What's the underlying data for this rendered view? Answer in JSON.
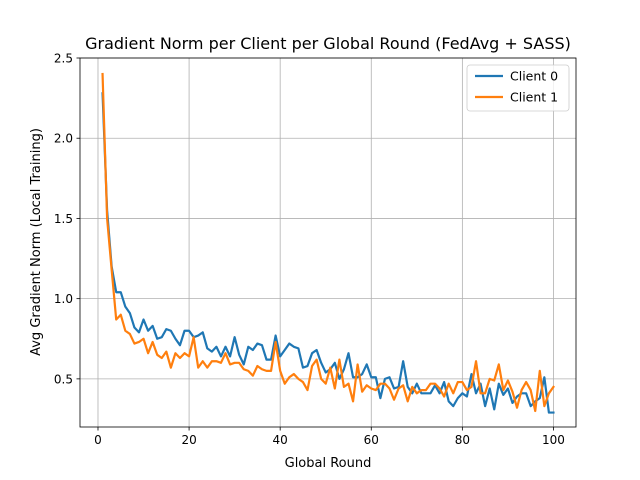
{
  "chart_data": {
    "type": "line",
    "title": "Gradient Norm per Client per Global Round (FedAvg + SASS)",
    "xlabel": "Global Round",
    "ylabel": "Avg Gradient Norm (Local Training)",
    "xlim": [
      -3.95,
      104.95
    ],
    "ylim": [
      0.2,
      2.5
    ],
    "xticks": [
      0,
      20,
      40,
      60,
      80,
      100
    ],
    "yticks": [
      0.5,
      1.0,
      1.5,
      2.0,
      2.5
    ],
    "xtick_labels": [
      "0",
      "20",
      "40",
      "60",
      "80",
      "100"
    ],
    "ytick_labels": [
      "0.5",
      "1.0",
      "1.5",
      "2.0",
      "2.5"
    ],
    "grid": true,
    "legend_position": "top-right",
    "series": [
      {
        "name": "Client 0",
        "color": "#1f77b4",
        "x": [
          1,
          2,
          3,
          4,
          5,
          6,
          7,
          8,
          9,
          10,
          11,
          12,
          13,
          14,
          15,
          16,
          17,
          18,
          19,
          20,
          21,
          22,
          23,
          24,
          25,
          26,
          27,
          28,
          29,
          30,
          31,
          32,
          33,
          34,
          35,
          36,
          37,
          38,
          39,
          40,
          41,
          42,
          43,
          44,
          45,
          46,
          47,
          48,
          49,
          50,
          51,
          52,
          53,
          54,
          55,
          56,
          57,
          58,
          59,
          60,
          61,
          62,
          63,
          64,
          65,
          66,
          67,
          68,
          69,
          70,
          71,
          72,
          73,
          74,
          75,
          76,
          77,
          78,
          79,
          80,
          81,
          82,
          83,
          84,
          85,
          86,
          87,
          88,
          89,
          90,
          91,
          92,
          93,
          94,
          95,
          96,
          97,
          98,
          99,
          100
        ],
        "y": [
          2.28,
          1.55,
          1.2,
          1.04,
          1.04,
          0.95,
          0.91,
          0.82,
          0.79,
          0.87,
          0.8,
          0.83,
          0.75,
          0.76,
          0.81,
          0.8,
          0.75,
          0.71,
          0.8,
          0.8,
          0.76,
          0.77,
          0.79,
          0.69,
          0.67,
          0.7,
          0.64,
          0.7,
          0.64,
          0.76,
          0.65,
          0.59,
          0.7,
          0.68,
          0.72,
          0.71,
          0.62,
          0.62,
          0.77,
          0.64,
          0.68,
          0.72,
          0.7,
          0.69,
          0.57,
          0.58,
          0.66,
          0.68,
          0.6,
          0.54,
          0.56,
          0.6,
          0.5,
          0.56,
          0.66,
          0.51,
          0.51,
          0.53,
          0.59,
          0.51,
          0.51,
          0.38,
          0.5,
          0.51,
          0.44,
          0.45,
          0.61,
          0.45,
          0.41,
          0.47,
          0.41,
          0.41,
          0.41,
          0.46,
          0.41,
          0.48,
          0.36,
          0.33,
          0.38,
          0.41,
          0.39,
          0.53,
          0.41,
          0.47,
          0.33,
          0.44,
          0.31,
          0.47,
          0.4,
          0.44,
          0.35,
          0.39,
          0.41,
          0.41,
          0.33,
          0.36,
          0.38,
          0.51,
          0.29,
          0.29
        ]
      },
      {
        "name": "Client 1",
        "color": "#ff7f0e",
        "x": [
          1,
          2,
          3,
          4,
          5,
          6,
          7,
          8,
          9,
          10,
          11,
          12,
          13,
          14,
          15,
          16,
          17,
          18,
          19,
          20,
          21,
          22,
          23,
          24,
          25,
          26,
          27,
          28,
          29,
          30,
          31,
          32,
          33,
          34,
          35,
          36,
          37,
          38,
          39,
          40,
          41,
          42,
          43,
          44,
          45,
          46,
          47,
          48,
          49,
          50,
          51,
          52,
          53,
          54,
          55,
          56,
          57,
          58,
          59,
          60,
          61,
          62,
          63,
          64,
          65,
          66,
          67,
          68,
          69,
          70,
          71,
          72,
          73,
          74,
          75,
          76,
          77,
          78,
          79,
          80,
          81,
          82,
          83,
          84,
          85,
          86,
          87,
          88,
          89,
          90,
          91,
          92,
          93,
          94,
          95,
          96,
          97,
          98,
          99,
          100
        ],
        "y": [
          2.4,
          1.5,
          1.18,
          0.87,
          0.9,
          0.8,
          0.78,
          0.72,
          0.73,
          0.75,
          0.66,
          0.73,
          0.65,
          0.63,
          0.67,
          0.57,
          0.66,
          0.63,
          0.66,
          0.64,
          0.76,
          0.57,
          0.61,
          0.57,
          0.61,
          0.61,
          0.6,
          0.66,
          0.59,
          0.6,
          0.6,
          0.56,
          0.55,
          0.52,
          0.58,
          0.56,
          0.55,
          0.55,
          0.73,
          0.55,
          0.47,
          0.51,
          0.53,
          0.5,
          0.48,
          0.43,
          0.58,
          0.62,
          0.5,
          0.47,
          0.57,
          0.44,
          0.62,
          0.45,
          0.47,
          0.36,
          0.59,
          0.42,
          0.46,
          0.44,
          0.43,
          0.47,
          0.47,
          0.44,
          0.37,
          0.44,
          0.46,
          0.36,
          0.45,
          0.41,
          0.43,
          0.43,
          0.47,
          0.47,
          0.44,
          0.39,
          0.47,
          0.41,
          0.48,
          0.48,
          0.43,
          0.45,
          0.61,
          0.41,
          0.41,
          0.5,
          0.49,
          0.59,
          0.43,
          0.49,
          0.42,
          0.32,
          0.43,
          0.48,
          0.43,
          0.3,
          0.55,
          0.33,
          0.41,
          0.45
        ]
      }
    ]
  }
}
